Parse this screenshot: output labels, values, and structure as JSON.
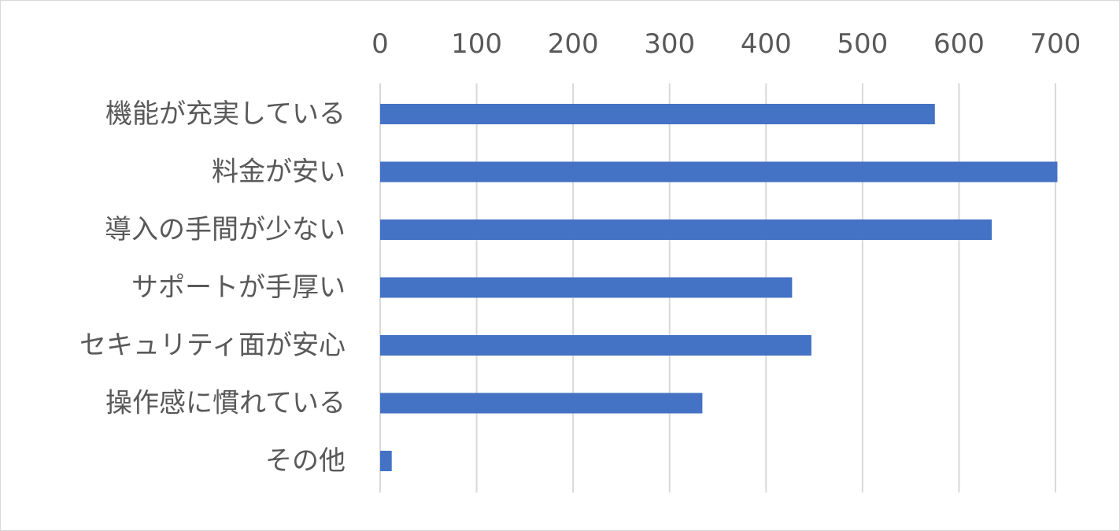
{
  "chart_data": {
    "type": "bar",
    "orientation": "horizontal",
    "categories": [
      "機能が充実している",
      "料金が安い",
      "導入の手間が少ない",
      "サポートが手厚い",
      "セキュリティ面が安心",
      "操作感に慣れている",
      "その他"
    ],
    "values": [
      575,
      702,
      634,
      427,
      447,
      334,
      12
    ],
    "xlim": [
      0,
      700
    ],
    "xticks": [
      "0",
      "100",
      "200",
      "300",
      "400",
      "500",
      "600",
      "700"
    ],
    "x_axis_position": "top",
    "grid": true,
    "legend": "none",
    "title": "",
    "xlabel": "",
    "ylabel": "",
    "bar_color": "#4472C4"
  }
}
